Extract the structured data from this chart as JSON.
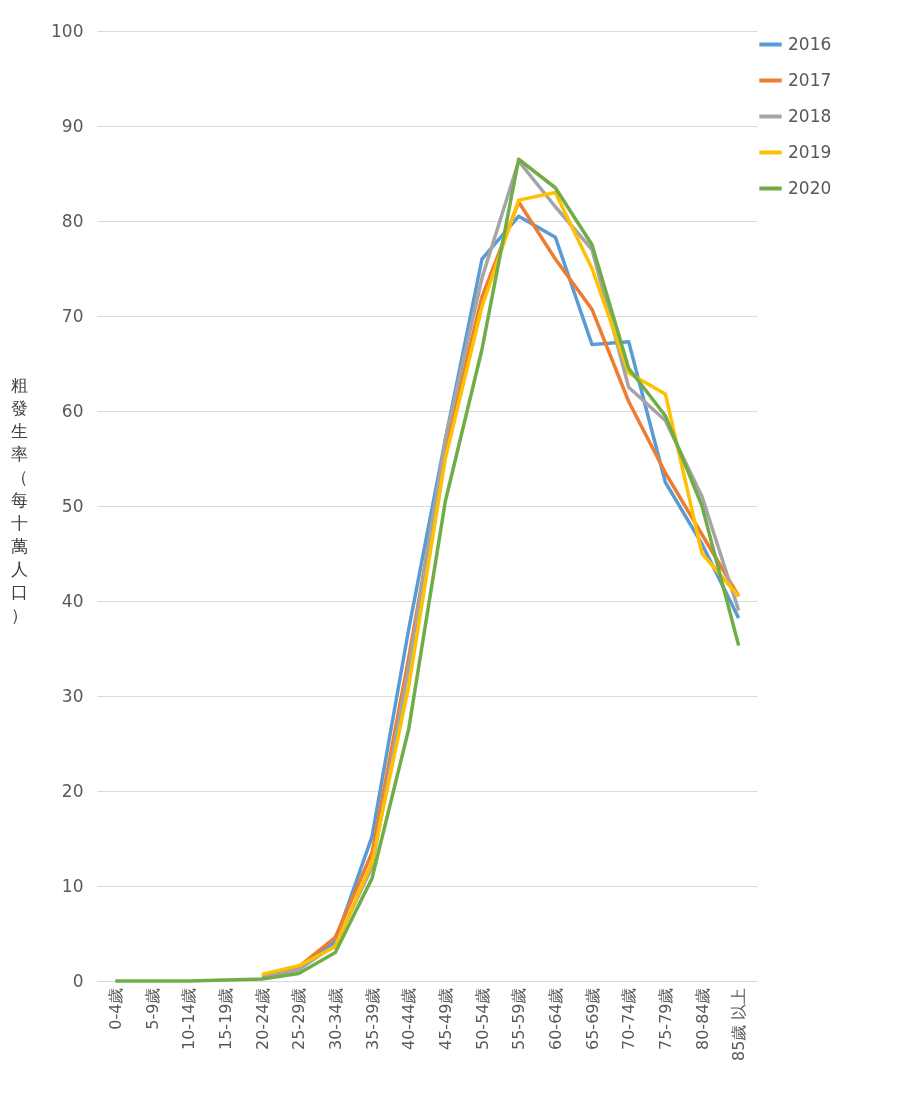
{
  "chart_data": {
    "type": "line",
    "ylabel": "粗發生率（每十萬人口）",
    "categories": [
      "0-4歲",
      "5-9歲",
      "10-14歲",
      "15-19歲",
      "20-24歲",
      "25-29歲",
      "30-34歲",
      "35-39歲",
      "40-44歲",
      "45-49歲",
      "50-54歲",
      "55-59歲",
      "60-64歲",
      "65-69歲",
      "70-74歲",
      "75-79歲",
      "80-84歲",
      "85歲 以上"
    ],
    "series": [
      {
        "name": "2016",
        "color": "#5b9bd5",
        "values": [
          null,
          null,
          null,
          null,
          0.4,
          1.2,
          4.2,
          15.2,
          37,
          57,
          76,
          80.5,
          78.3,
          67,
          67.3,
          52.5,
          46,
          38.2
        ]
      },
      {
        "name": "2017",
        "color": "#ed7d31",
        "values": [
          null,
          null,
          null,
          null,
          0.5,
          1.5,
          4.6,
          13.5,
          34,
          56,
          72,
          82,
          76,
          70.7,
          61,
          53.5,
          47,
          40.5
        ]
      },
      {
        "name": "2018",
        "color": "#a5a5a5",
        "values": [
          null,
          null,
          null,
          null,
          0.4,
          1.2,
          3.8,
          12,
          33,
          57,
          74,
          86.3,
          81.5,
          77,
          62.5,
          59,
          51,
          39
        ]
      },
      {
        "name": "2019",
        "color": "#ffc000",
        "values": [
          null,
          null,
          null,
          null,
          0.7,
          1.6,
          3.6,
          12.5,
          31,
          55,
          71,
          82.2,
          83,
          75,
          64,
          61.8,
          45,
          40.5
        ]
      },
      {
        "name": "2020",
        "color": "#70ad47",
        "values": [
          0,
          0,
          0,
          0.1,
          0.2,
          0.8,
          3,
          10.8,
          26.5,
          50.5,
          66.5,
          86.5,
          83.5,
          77.5,
          64.5,
          59.5,
          50,
          35.3
        ]
      }
    ],
    "ylim": [
      0,
      100
    ],
    "yticks": [
      0,
      10,
      20,
      30,
      40,
      50,
      60,
      70,
      80,
      90,
      100
    ],
    "grid": "y",
    "legend": "right",
    "marker": "none",
    "line_style": "solid"
  }
}
